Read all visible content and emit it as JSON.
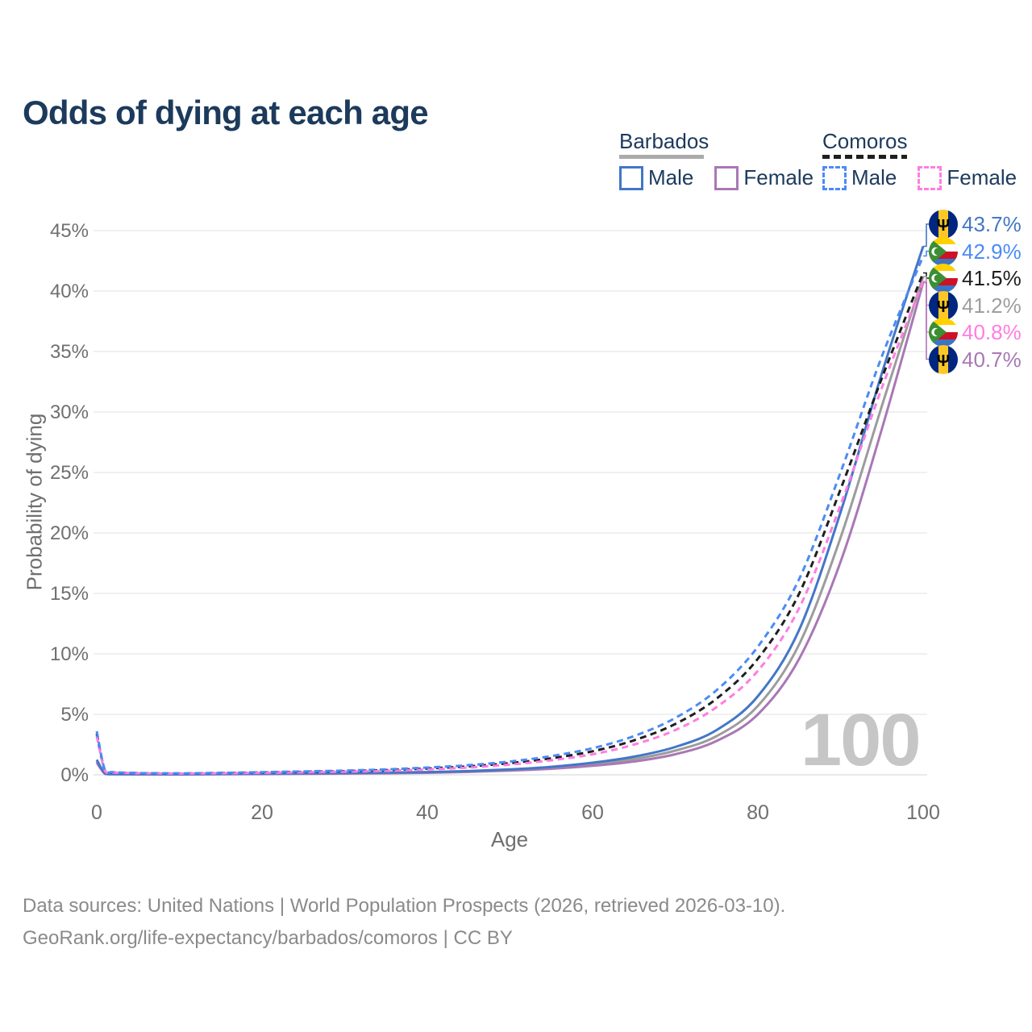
{
  "title": "Odds of dying at each age",
  "watermark": "100",
  "legend": {
    "groups": [
      {
        "country": "Barbados",
        "underline_color": "#ABABAB",
        "underline_dashed": false,
        "items": [
          {
            "label": "Male",
            "color": "#4377C6",
            "dashed": false
          },
          {
            "label": "Female",
            "color": "#A978B5",
            "dashed": false
          }
        ]
      },
      {
        "country": "Comoros",
        "underline_color": "#1F1F1F",
        "underline_dashed": true,
        "items": [
          {
            "label": "Male",
            "color": "#4C8BF5",
            "dashed": true
          },
          {
            "label": "Female",
            "color": "#FF7DE2",
            "dashed": true
          }
        ]
      }
    ]
  },
  "chart_data": {
    "type": "line",
    "title": "Odds of dying at each age",
    "xlabel": "Age",
    "ylabel": "Probability of dying",
    "xlim": [
      0,
      100
    ],
    "ylim": [
      0,
      47
    ],
    "grid": "horizontal",
    "legend_position": "top-right",
    "x_ticks": [
      0,
      20,
      40,
      60,
      80,
      100
    ],
    "y_ticks": [
      {
        "value": 0,
        "label": "0%"
      },
      {
        "value": 5,
        "label": "5%"
      },
      {
        "value": 10,
        "label": "10%"
      },
      {
        "value": 15,
        "label": "15%"
      },
      {
        "value": 20,
        "label": "20%"
      },
      {
        "value": 25,
        "label": "25%"
      },
      {
        "value": 30,
        "label": "30%"
      },
      {
        "value": 35,
        "label": "35%"
      },
      {
        "value": 40,
        "label": "40%"
      },
      {
        "value": 45,
        "label": "45%"
      }
    ],
    "x": [
      0,
      1,
      2,
      5,
      10,
      15,
      20,
      25,
      30,
      35,
      40,
      45,
      50,
      55,
      60,
      65,
      70,
      75,
      80,
      85,
      90,
      95,
      100
    ],
    "series": [
      {
        "id": "barbados-both",
        "name": "Barbados both sexes",
        "country": "Barbados",
        "color": "#9C9C9C",
        "dashed": false,
        "values": [
          1.12,
          0.09,
          0.055,
          0.04,
          0.035,
          0.06,
          0.085,
          0.105,
          0.125,
          0.155,
          0.2,
          0.27,
          0.4,
          0.58,
          0.87,
          1.3,
          2.0,
          3.2,
          5.7,
          10.8,
          19.6,
          30.5,
          41.2
        ]
      },
      {
        "id": "barbados-female",
        "name": "Barbados female",
        "country": "Barbados",
        "color": "#A978B5",
        "dashed": false,
        "values": [
          1.0,
          0.08,
          0.05,
          0.035,
          0.03,
          0.045,
          0.06,
          0.08,
          0.1,
          0.13,
          0.17,
          0.24,
          0.35,
          0.5,
          0.75,
          1.1,
          1.7,
          2.8,
          5.0,
          9.6,
          17.6,
          28.6,
          40.7
        ]
      },
      {
        "id": "barbados-male",
        "name": "Barbados male",
        "country": "Barbados",
        "color": "#4377C6",
        "dashed": false,
        "values": [
          1.25,
          0.1,
          0.06,
          0.045,
          0.04,
          0.07,
          0.11,
          0.13,
          0.15,
          0.18,
          0.23,
          0.31,
          0.45,
          0.66,
          1.0,
          1.5,
          2.3,
          3.7,
          6.5,
          12.0,
          21.7,
          33.2,
          43.7
        ]
      },
      {
        "id": "comoros-both",
        "name": "Comoros both sexes",
        "country": "Comoros",
        "color": "#1F1F1F",
        "dashed": true,
        "values": [
          3.4,
          0.33,
          0.2,
          0.14,
          0.11,
          0.145,
          0.195,
          0.245,
          0.3,
          0.39,
          0.52,
          0.7,
          0.97,
          1.37,
          1.95,
          2.85,
          4.2,
          6.3,
          9.6,
          15.0,
          23.6,
          32.8,
          41.5
        ]
      },
      {
        "id": "comoros-female",
        "name": "Comoros female",
        "country": "Comoros",
        "color": "#FF7DE2",
        "dashed": true,
        "values": [
          3.2,
          0.31,
          0.19,
          0.13,
          0.1,
          0.13,
          0.17,
          0.21,
          0.26,
          0.33,
          0.44,
          0.6,
          0.85,
          1.2,
          1.7,
          2.5,
          3.7,
          5.6,
          8.6,
          13.8,
          22.3,
          32.0,
          40.8
        ]
      },
      {
        "id": "comoros-male",
        "name": "Comoros male",
        "country": "Comoros",
        "color": "#4C8BF5",
        "dashed": true,
        "values": [
          3.6,
          0.36,
          0.22,
          0.15,
          0.12,
          0.16,
          0.22,
          0.28,
          0.35,
          0.45,
          0.6,
          0.8,
          1.1,
          1.55,
          2.2,
          3.2,
          4.7,
          7.0,
          10.6,
          16.2,
          25.0,
          34.6,
          42.9
        ]
      }
    ],
    "end_labels": [
      {
        "flag": "barbados",
        "series": "Barbados male",
        "text": "43.7%",
        "value": 43.7,
        "color": "#4377C6"
      },
      {
        "flag": "comoros",
        "series": "Comoros male",
        "text": "42.9%",
        "value": 42.9,
        "color": "#4C8BF5"
      },
      {
        "flag": "comoros",
        "series": "Comoros both sexes",
        "text": "41.5%",
        "value": 41.5,
        "color": "#1F1F1F"
      },
      {
        "flag": "barbados",
        "series": "Barbados both sexes",
        "text": "41.2%",
        "value": 41.2,
        "color": "#9E9E9E"
      },
      {
        "flag": "comoros",
        "series": "Comoros female",
        "text": "40.8%",
        "value": 40.8,
        "color": "#FF7DE2"
      },
      {
        "flag": "barbados",
        "series": "Barbados female",
        "text": "40.7%",
        "value": 40.7,
        "color": "#A978B5"
      }
    ]
  },
  "footer": {
    "line1": "Data sources: United Nations | World Population Prospects (2026, retrieved 2026-03-10).",
    "line2": "GeoRank.org/life-expectancy/barbados/comoros | CC BY"
  }
}
